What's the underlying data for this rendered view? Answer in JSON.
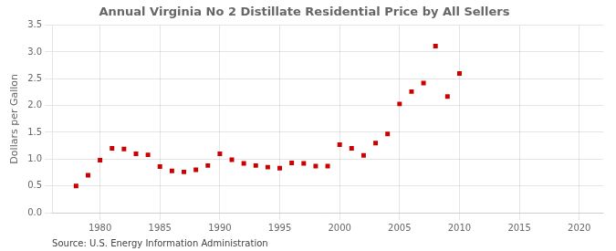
{
  "chart_data": {
    "type": "scatter",
    "title": "Annual Virginia No 2 Distillate Residential Price by All Sellers",
    "ylabel": "Dollars per Gallon",
    "annotations": [
      "Source: U.S. Energy Information Administration"
    ],
    "x": [
      1978,
      1979,
      1980,
      1981,
      1982,
      1983,
      1984,
      1985,
      1986,
      1987,
      1988,
      1989,
      1990,
      1991,
      1992,
      1993,
      1994,
      1995,
      1996,
      1997,
      1998,
      1999,
      2000,
      2001,
      2002,
      2003,
      2004,
      2005,
      2006,
      2007,
      2008,
      2009,
      2010
    ],
    "values": [
      0.5,
      0.7,
      0.98,
      1.2,
      1.19,
      1.1,
      1.08,
      0.86,
      0.78,
      0.76,
      0.8,
      0.88,
      1.1,
      0.99,
      0.92,
      0.88,
      0.85,
      0.83,
      0.93,
      0.92,
      0.87,
      0.87,
      1.27,
      1.2,
      1.07,
      1.3,
      1.47,
      2.03,
      2.26,
      2.42,
      3.11,
      2.17,
      2.6
    ],
    "color": "#cc0000",
    "marker": "square",
    "xlim": [
      1976,
      2022
    ],
    "xticks": [
      1980,
      1985,
      1990,
      1995,
      2000,
      2005,
      2010,
      2015,
      2020
    ],
    "ylim": [
      0.0,
      3.5
    ],
    "yticks": [
      {
        "value": 0,
        "label": "0.0"
      },
      0.5,
      {
        "value": 1,
        "label": "1.0"
      },
      1.5,
      {
        "value": 2,
        "label": "2.0"
      },
      2.5,
      {
        "value": 3,
        "label": "3.0"
      },
      3.5
    ],
    "grid": true
  }
}
